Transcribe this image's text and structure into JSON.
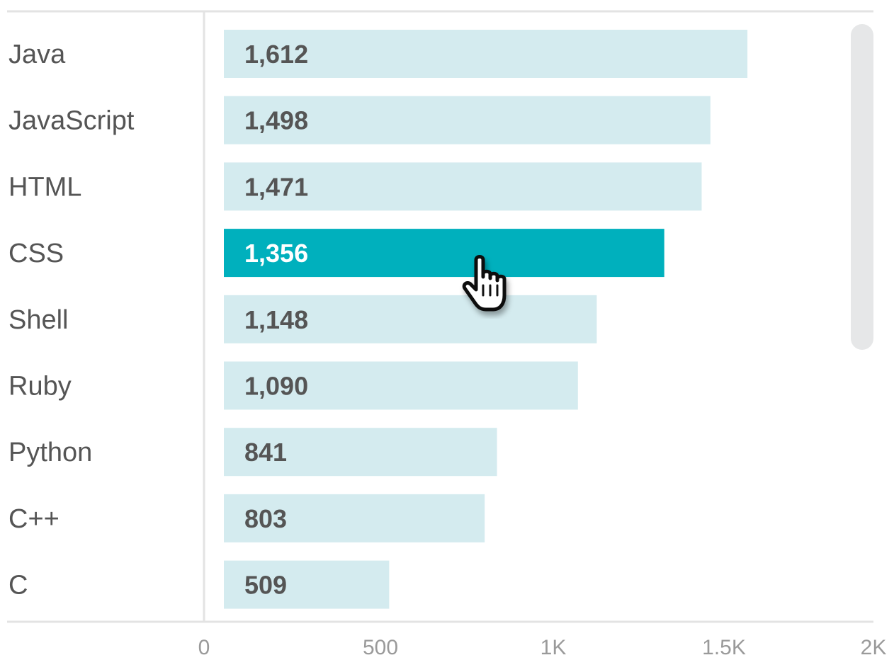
{
  "chart_data": {
    "type": "bar",
    "orientation": "horizontal",
    "categories": [
      "Java",
      "JavaScript",
      "HTML",
      "CSS",
      "Shell",
      "Ruby",
      "Python",
      "C++",
      "C"
    ],
    "values": [
      1612,
      1498,
      1471,
      1356,
      1148,
      1090,
      841,
      803,
      509
    ],
    "value_labels": [
      "1,612",
      "1,498",
      "1,471",
      "1,356",
      "1,148",
      "1,090",
      "841",
      "803",
      "509"
    ],
    "xlim": [
      0,
      2000
    ],
    "x_ticks": [
      0,
      500,
      1000,
      1500,
      2000
    ],
    "x_tick_labels": [
      "0",
      "500",
      "1K",
      "1.5K",
      "2K"
    ],
    "highlighted_category": "CSS",
    "grid": false,
    "colors": {
      "bar": "#d4ebef",
      "bar_highlight": "#00b0bd",
      "axis": "#e3e3e3",
      "label_text": "#555555",
      "tick_text": "#9a9a9a"
    }
  },
  "ui": {
    "scrollbar": true,
    "cursor_icon": "pointer-hand-icon"
  }
}
